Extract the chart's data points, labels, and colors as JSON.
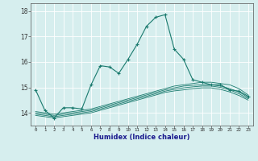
{
  "xlabel": "Humidex (Indice chaleur)",
  "ylabel": "",
  "background_color": "#d6eeee",
  "line_color": "#1a7a6e",
  "xlim": [
    -0.5,
    23.5
  ],
  "ylim": [
    13.5,
    18.3
  ],
  "yticks": [
    14,
    15,
    16,
    17,
    18
  ],
  "xticks": [
    0,
    1,
    2,
    3,
    4,
    5,
    6,
    7,
    8,
    9,
    10,
    11,
    12,
    13,
    14,
    15,
    16,
    17,
    18,
    19,
    20,
    21,
    22,
    23
  ],
  "series": [
    {
      "x": [
        0,
        1,
        2,
        3,
        4,
        5,
        6,
        7,
        8,
        9,
        10,
        11,
        12,
        13,
        14,
        15,
        16,
        17,
        18,
        19,
        20,
        21,
        22,
        23
      ],
      "y": [
        14.9,
        14.1,
        13.8,
        14.2,
        14.2,
        14.15,
        15.1,
        15.85,
        15.8,
        15.55,
        16.1,
        16.7,
        17.4,
        17.75,
        17.85,
        16.5,
        16.1,
        15.3,
        15.2,
        15.1,
        15.1,
        14.9,
        14.85,
        14.65
      ],
      "marker": true
    },
    {
      "x": [
        0,
        1,
        2,
        3,
        4,
        5,
        6,
        7,
        8,
        9,
        10,
        11,
        12,
        13,
        14,
        15,
        16,
        17,
        18,
        19,
        20,
        21,
        22,
        23
      ],
      "y": [
        14.05,
        14.0,
        13.95,
        14.0,
        14.05,
        14.1,
        14.15,
        14.25,
        14.35,
        14.45,
        14.55,
        14.65,
        14.75,
        14.85,
        14.95,
        15.05,
        15.1,
        15.15,
        15.2,
        15.2,
        15.15,
        15.1,
        14.95,
        14.7
      ],
      "marker": false
    },
    {
      "x": [
        0,
        1,
        2,
        3,
        4,
        5,
        6,
        7,
        8,
        9,
        10,
        11,
        12,
        13,
        14,
        15,
        16,
        17,
        18,
        19,
        20,
        21,
        22,
        23
      ],
      "y": [
        14.0,
        13.95,
        13.9,
        13.95,
        14.0,
        14.05,
        14.1,
        14.2,
        14.3,
        14.4,
        14.5,
        14.6,
        14.7,
        14.8,
        14.9,
        14.98,
        15.05,
        15.08,
        15.1,
        15.1,
        15.05,
        14.95,
        14.82,
        14.6
      ],
      "marker": false
    },
    {
      "x": [
        0,
        1,
        2,
        3,
        4,
        5,
        6,
        7,
        8,
        9,
        10,
        11,
        12,
        13,
        14,
        15,
        16,
        17,
        18,
        19,
        20,
        21,
        22,
        23
      ],
      "y": [
        13.95,
        13.9,
        13.85,
        13.9,
        13.95,
        14.0,
        14.05,
        14.15,
        14.25,
        14.35,
        14.45,
        14.55,
        14.65,
        14.75,
        14.85,
        14.92,
        14.98,
        15.02,
        15.05,
        15.05,
        15.0,
        14.9,
        14.75,
        14.55
      ],
      "marker": false
    },
    {
      "x": [
        0,
        1,
        2,
        3,
        4,
        5,
        6,
        7,
        8,
        9,
        10,
        11,
        12,
        13,
        14,
        15,
        16,
        17,
        18,
        19,
        20,
        21,
        22,
        23
      ],
      "y": [
        13.9,
        13.85,
        13.8,
        13.85,
        13.9,
        13.95,
        14.0,
        14.1,
        14.2,
        14.3,
        14.4,
        14.5,
        14.6,
        14.7,
        14.8,
        14.86,
        14.9,
        14.95,
        14.98,
        14.98,
        14.92,
        14.82,
        14.68,
        14.5
      ],
      "marker": false
    }
  ]
}
